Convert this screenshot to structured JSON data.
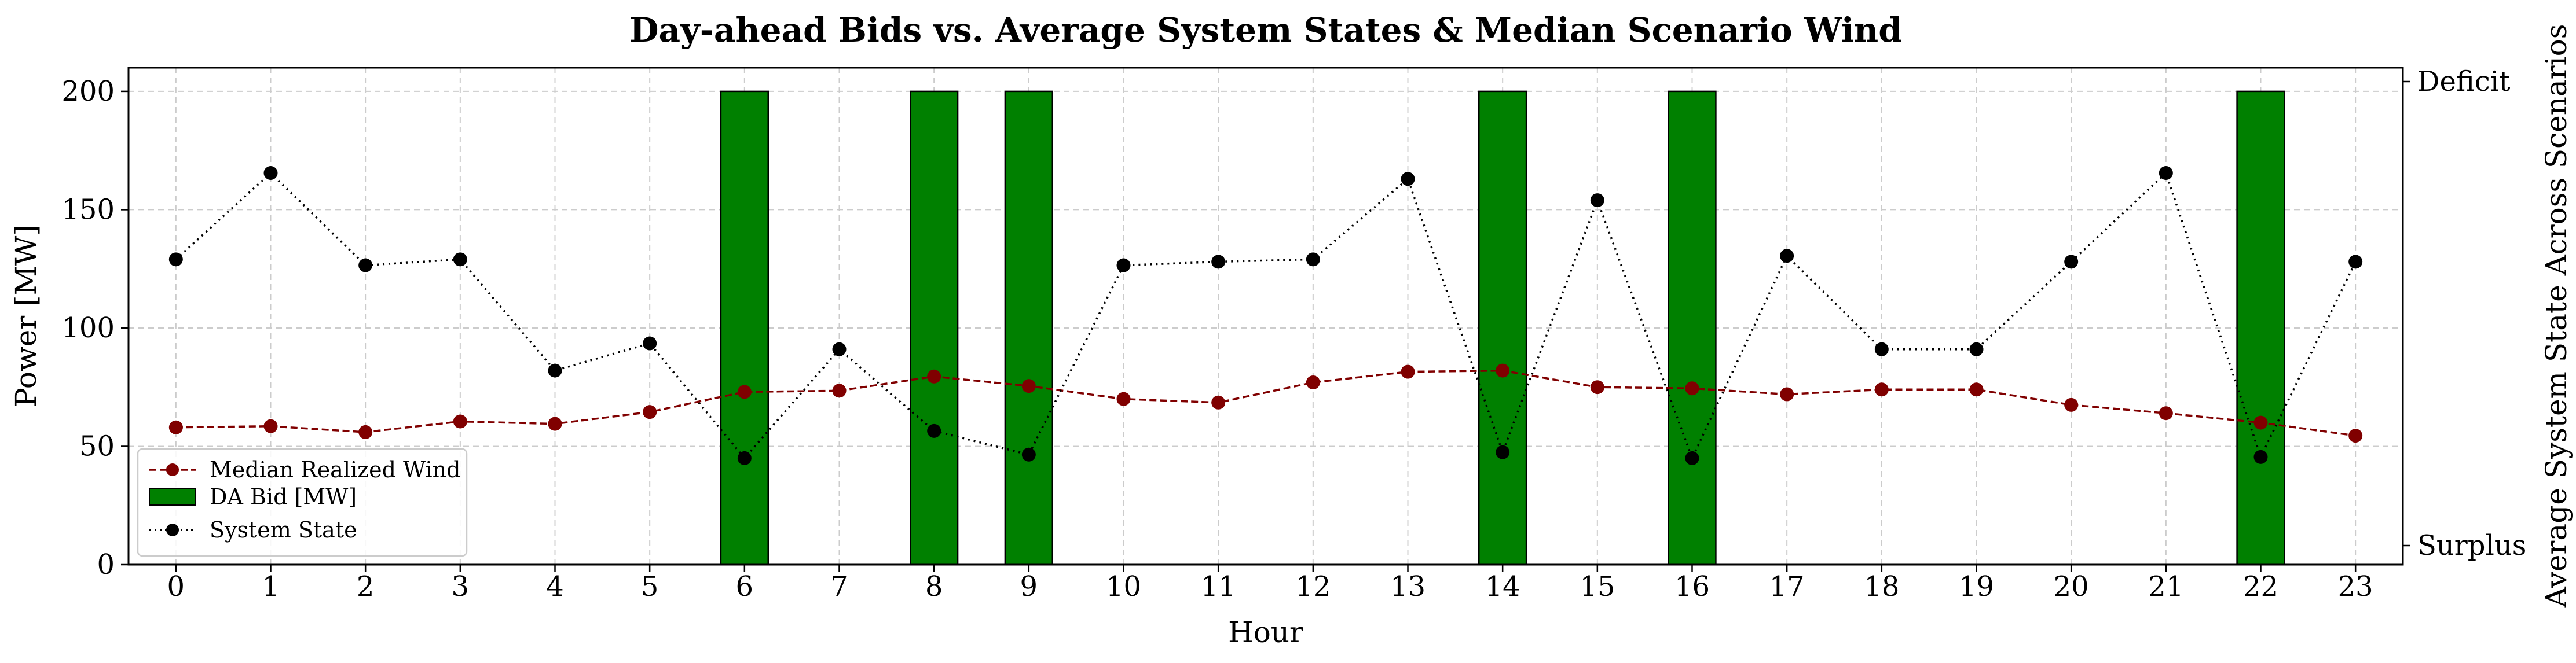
{
  "chart_data": {
    "type": "bar",
    "title": "Day-ahead Bids vs. Average System States & Median Scenario Wind",
    "xlabel": "Hour",
    "ylabel": "Power [MW]",
    "y2label": "Average System State Across Scenarios",
    "x": [
      0,
      1,
      2,
      3,
      4,
      5,
      6,
      7,
      8,
      9,
      10,
      11,
      12,
      13,
      14,
      15,
      16,
      17,
      18,
      19,
      20,
      21,
      22,
      23
    ],
    "xlim": [
      -0.5,
      23.5
    ],
    "ylim": [
      0,
      210
    ],
    "yticks": [
      0,
      50,
      100,
      150,
      200
    ],
    "y2_tick_labels": {
      "top": "Deficit",
      "bottom": "Surplus"
    },
    "grid": true,
    "legend_position": "lower-left",
    "series": [
      {
        "name": "Median Realized Wind",
        "kind": "line",
        "style": "dashed",
        "marker": "circle",
        "color": "#800000",
        "values": [
          58,
          58.5,
          56,
          60.5,
          59.5,
          64.5,
          73,
          73.5,
          79.5,
          75.5,
          70,
          68.5,
          77,
          81.5,
          82,
          75,
          74.5,
          72,
          74,
          74,
          67.5,
          64,
          60,
          54.5
        ]
      },
      {
        "name": "DA Bid [MW]",
        "kind": "bar",
        "color": "#008000",
        "values": [
          0,
          0,
          0,
          0,
          0,
          0,
          200,
          0,
          200,
          200,
          0,
          0,
          0,
          0,
          200,
          0,
          200,
          0,
          0,
          0,
          0,
          0,
          200,
          0
        ]
      },
      {
        "name": "System State",
        "kind": "line",
        "style": "dotted",
        "marker": "circle",
        "color": "#000000",
        "values": [
          129,
          165.5,
          126.5,
          129,
          82,
          93.5,
          45,
          91,
          56.5,
          46.5,
          126.5,
          128,
          129,
          163,
          47.5,
          154,
          45,
          130.5,
          91,
          91,
          128,
          165.5,
          45.5,
          128
        ]
      }
    ]
  }
}
